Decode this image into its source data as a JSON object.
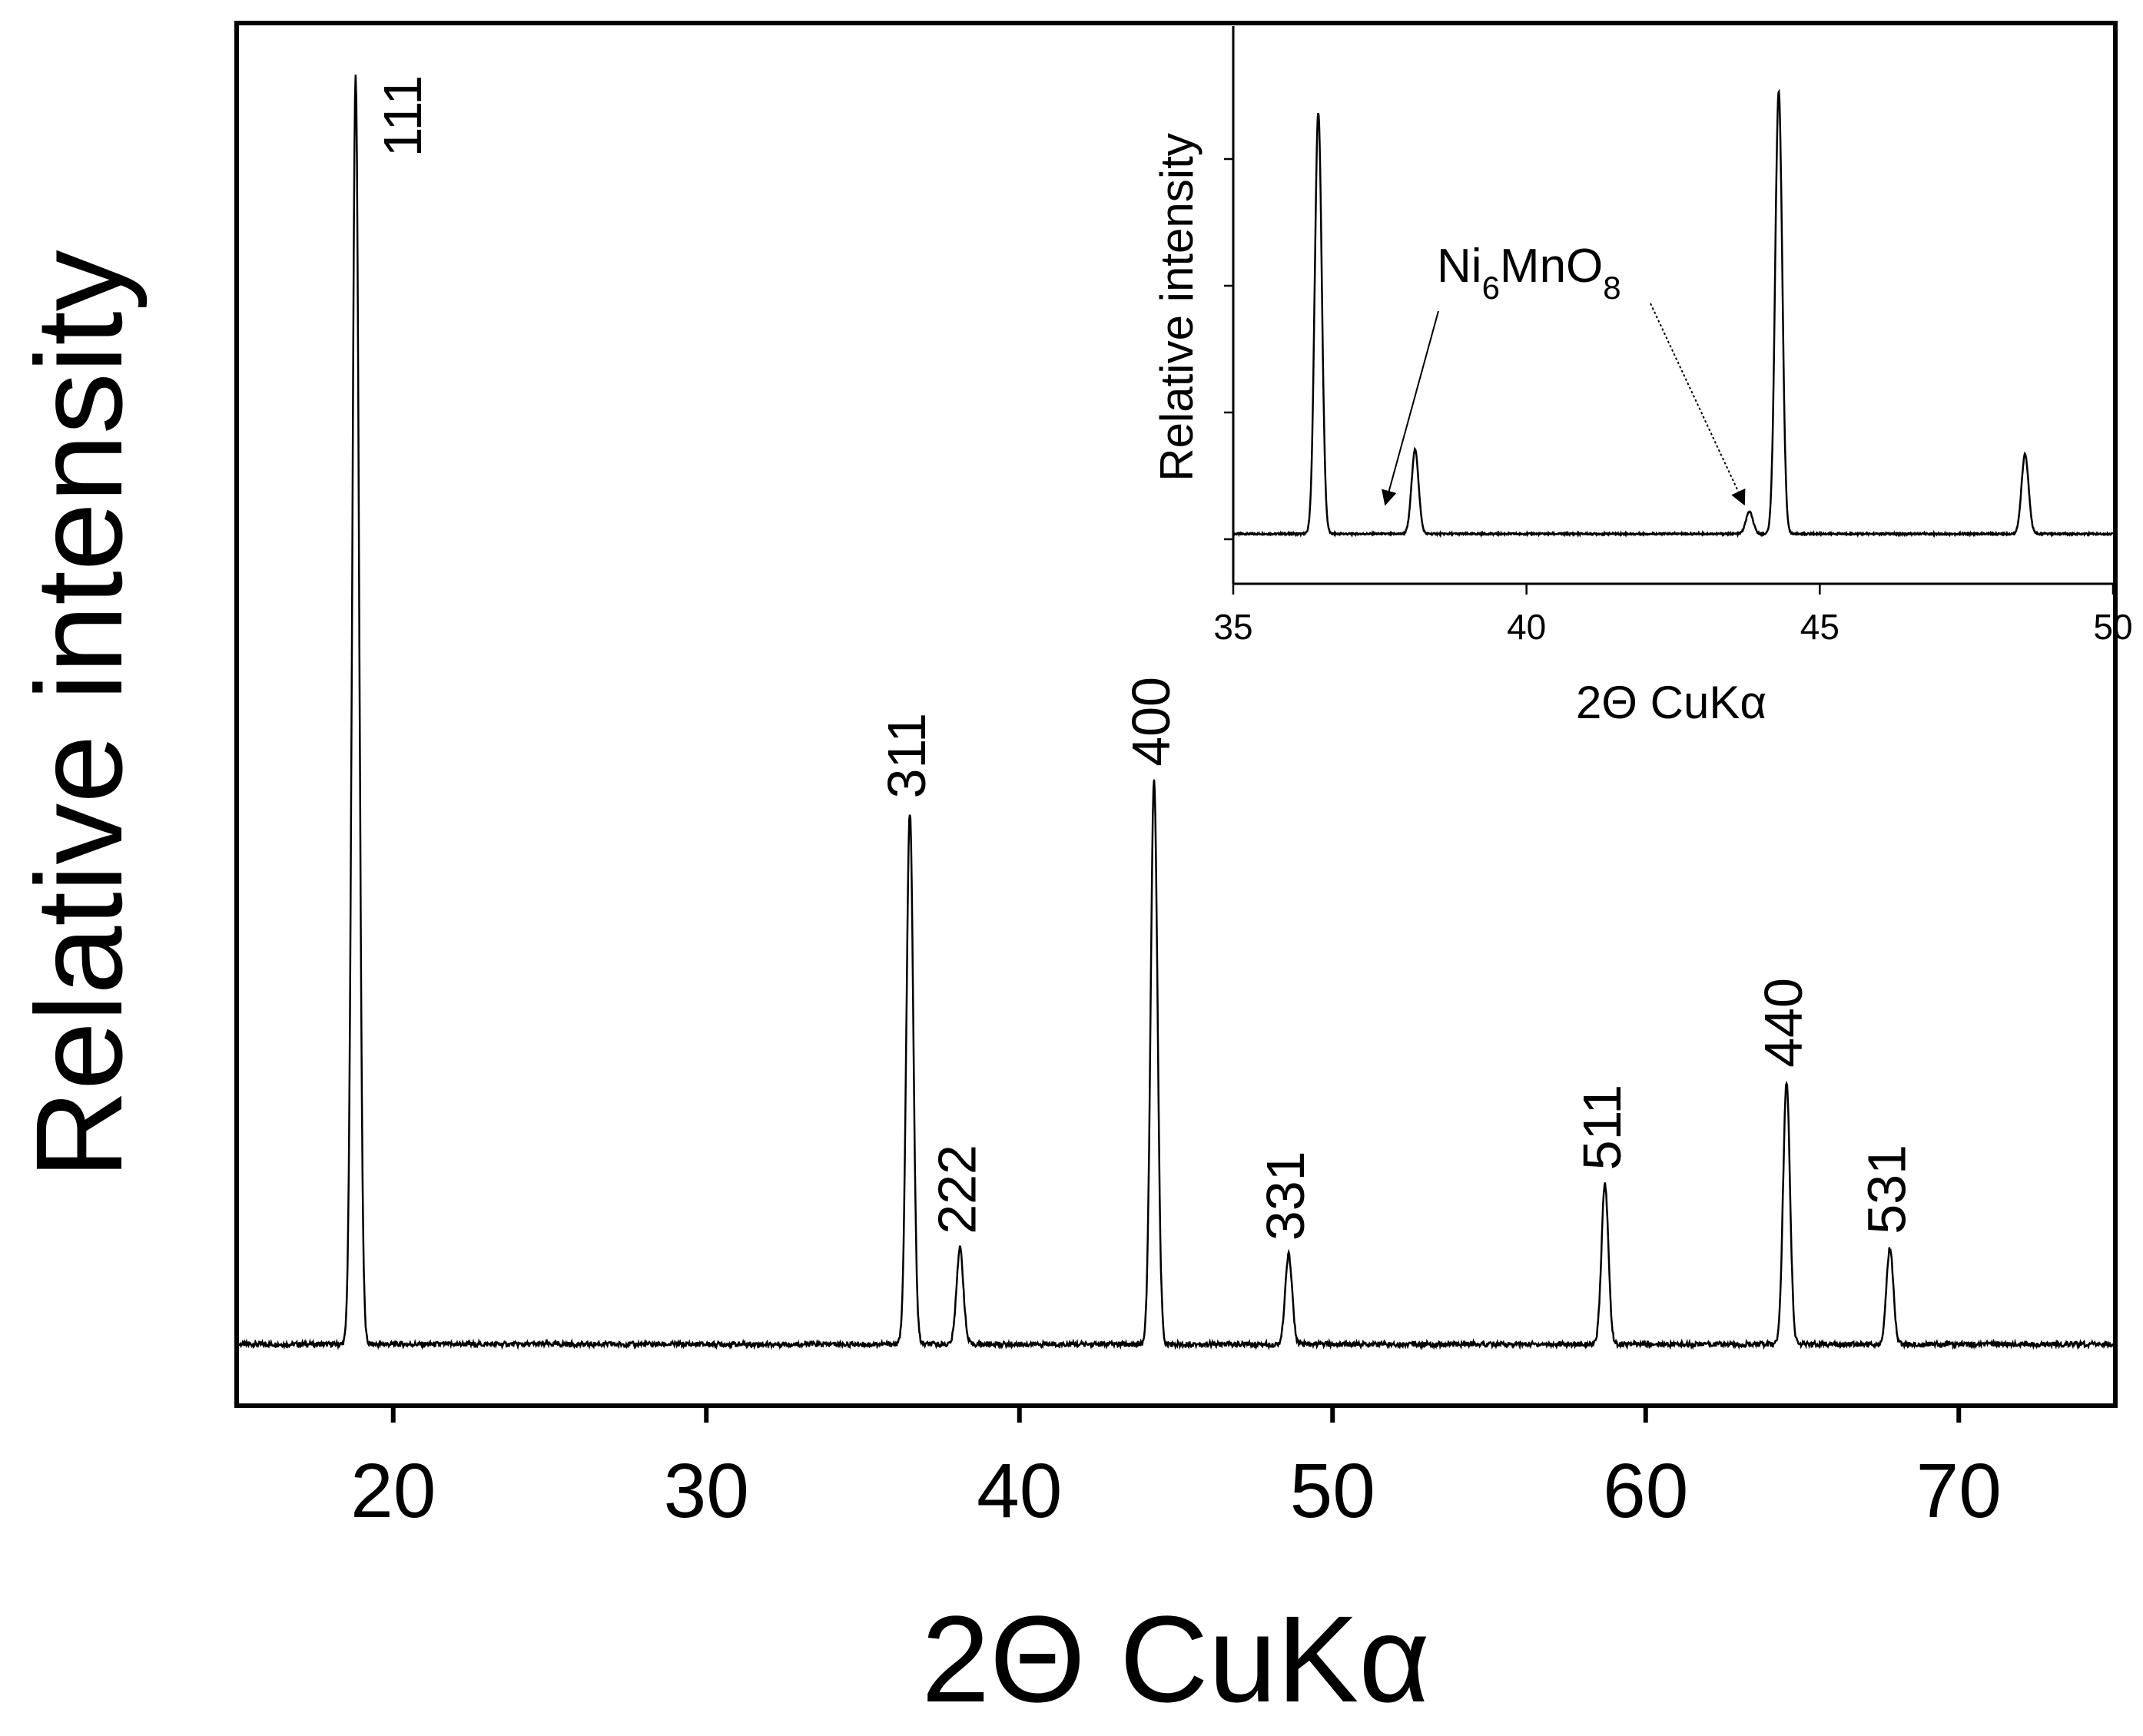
{
  "chart_data": [
    {
      "type": "line",
      "title": "",
      "xlabel": "2Θ CuKα",
      "ylabel": "Relative intensity",
      "xlim": [
        15,
        75
      ],
      "ylim": [
        0,
        1.05
      ],
      "x_ticks": [
        20,
        30,
        40,
        50,
        60,
        70
      ],
      "x_tick_labels": [
        "20",
        "30",
        "40",
        "50",
        "60",
        "70"
      ],
      "y_ticks": [],
      "grid": false,
      "legend": "none",
      "series": [
        {
          "baseline": 0.01,
          "peaks": [
            {
              "x": 18.8,
              "y": 1.0,
              "label": "111"
            },
            {
              "x": 36.5,
              "y": 0.425,
              "label": "311"
            },
            {
              "x": 38.1,
              "y": 0.085,
              "label": "222"
            },
            {
              "x": 44.3,
              "y": 0.45,
              "label": "400"
            },
            {
              "x": 48.6,
              "y": 0.08,
              "label": "331"
            },
            {
              "x": 58.7,
              "y": 0.135,
              "label": "511"
            },
            {
              "x": 64.5,
              "y": 0.215,
              "label": "440"
            },
            {
              "x": 67.8,
              "y": 0.085,
              "label": "531"
            }
          ]
        }
      ]
    },
    {
      "type": "line",
      "title": "",
      "xlabel": "2Θ CuKα",
      "ylabel": "Relative intensity",
      "xlim": [
        35,
        50
      ],
      "ylim": [
        0,
        1.05
      ],
      "x_ticks": [
        35,
        40,
        45,
        50
      ],
      "x_tick_labels": [
        "35",
        "40",
        "45",
        "50"
      ],
      "y_ticks": [
        0.0,
        0.29,
        0.58,
        0.87
      ],
      "grid": false,
      "legend": "none",
      "annotation": {
        "text_main_1": "Ni",
        "sub_1": "6",
        "text_main_2": "MnO",
        "sub_2": "8",
        "arrow_targets_x": [
          37.6,
          43.7
        ]
      },
      "series": [
        {
          "baseline": 0.0,
          "peaks": [
            {
              "x": 36.45,
              "y": 0.95
            },
            {
              "x": 38.1,
              "y": 0.19
            },
            {
              "x": 43.8,
              "y": 0.05
            },
            {
              "x": 44.3,
              "y": 1.0
            },
            {
              "x": 48.5,
              "y": 0.18
            }
          ]
        }
      ]
    }
  ]
}
